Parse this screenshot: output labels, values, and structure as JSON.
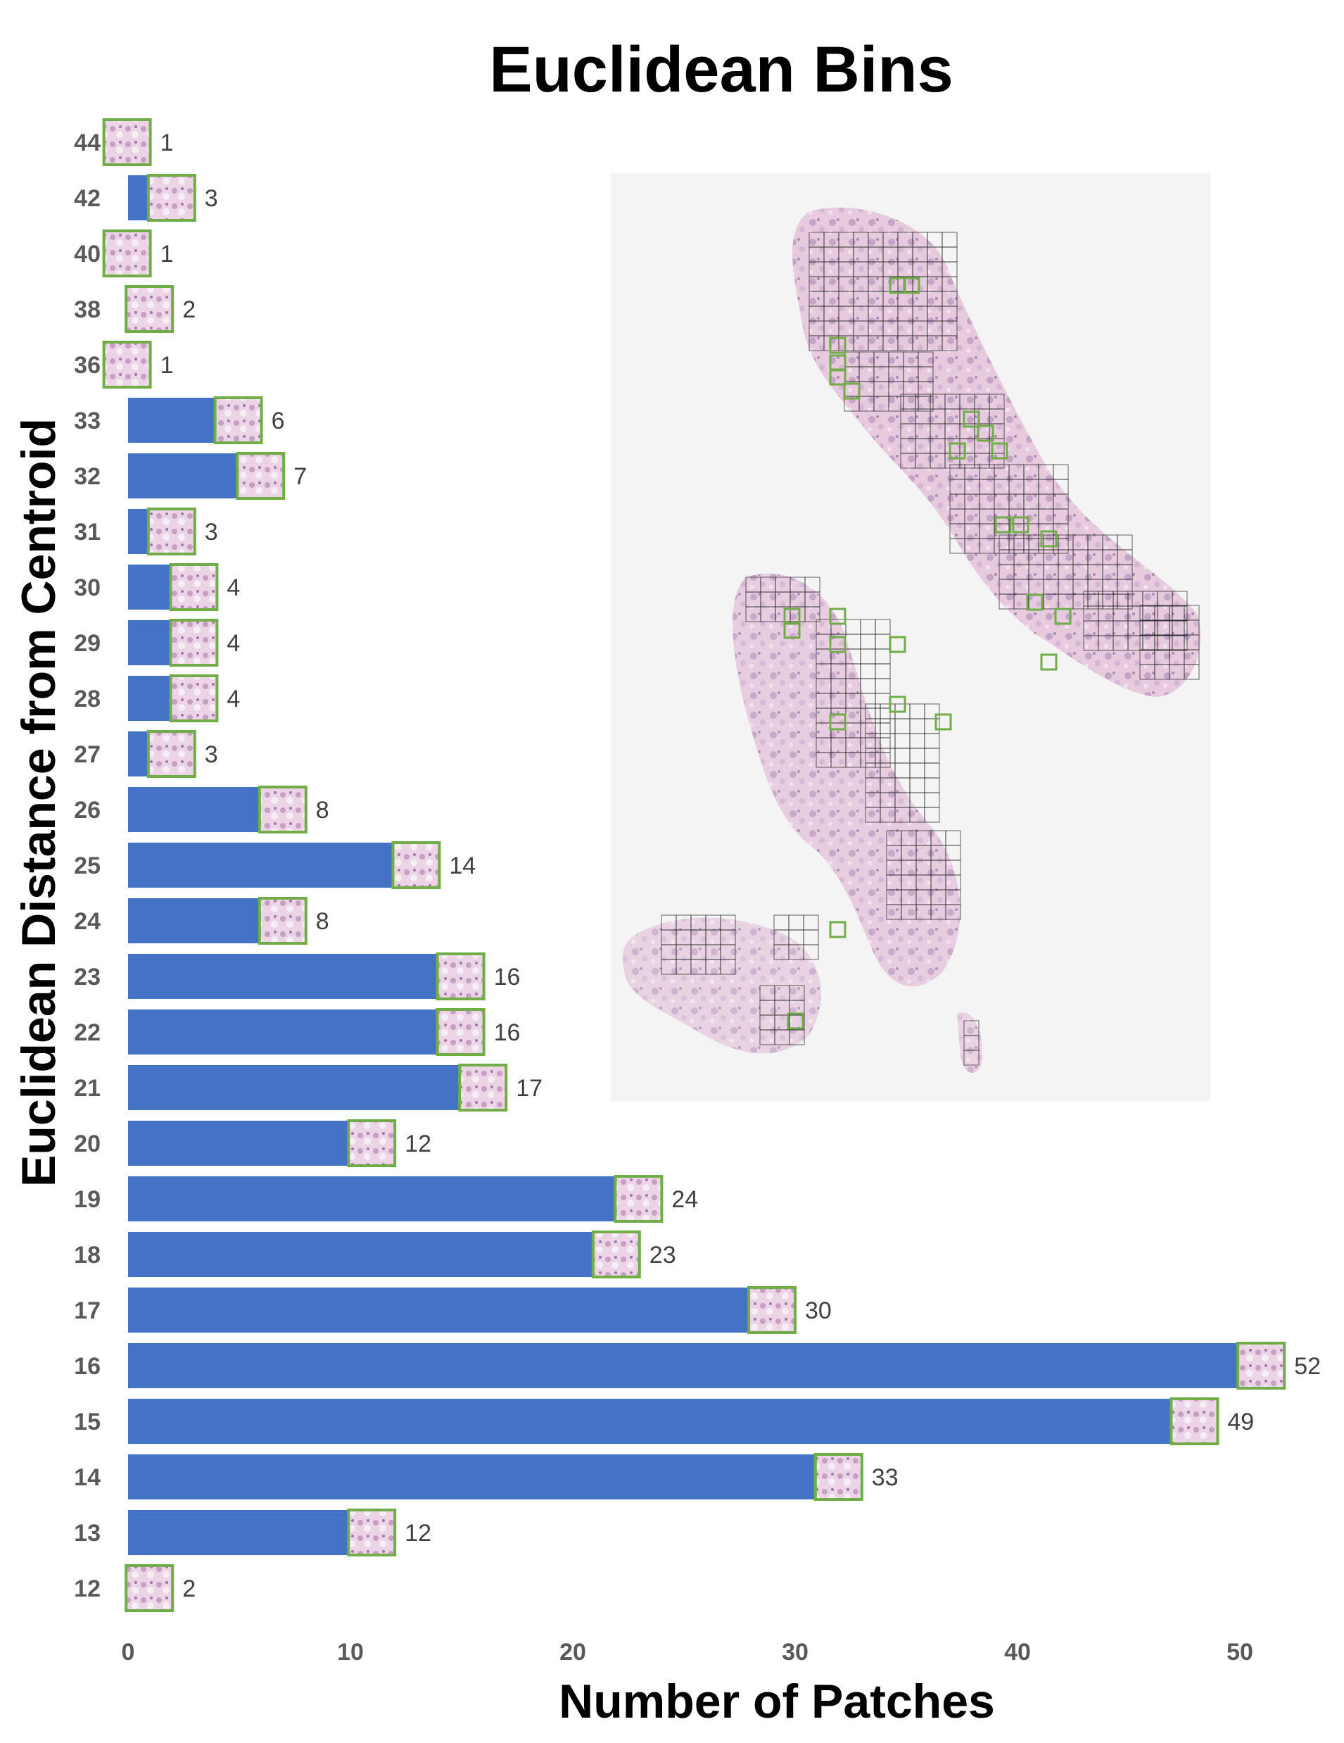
{
  "chart_data": {
    "type": "bar",
    "orientation": "horizontal",
    "title": "Euclidean Bins",
    "xlabel": "Number of Patches",
    "ylabel": "Euclidean Distance from Centroid",
    "categories": [
      "12",
      "13",
      "14",
      "15",
      "16",
      "17",
      "18",
      "19",
      "20",
      "21",
      "22",
      "23",
      "24",
      "25",
      "26",
      "27",
      "28",
      "29",
      "30",
      "31",
      "32",
      "33",
      "36",
      "38",
      "40",
      "42",
      "44"
    ],
    "values": [
      2,
      12,
      33,
      49,
      52,
      30,
      23,
      24,
      12,
      17,
      16,
      16,
      8,
      14,
      8,
      3,
      4,
      4,
      4,
      3,
      7,
      6,
      1,
      2,
      1,
      3,
      1
    ],
    "xlim": [
      0,
      55
    ],
    "xticks": [
      0,
      10,
      20,
      30,
      40,
      50
    ],
    "grid": false,
    "legend": "none",
    "bar_color": "#4472C4",
    "thumbnail_border_color": "#70AD47",
    "inset": "whole-slide tissue image with grid of patch squares (black) and selected patches (green)"
  }
}
